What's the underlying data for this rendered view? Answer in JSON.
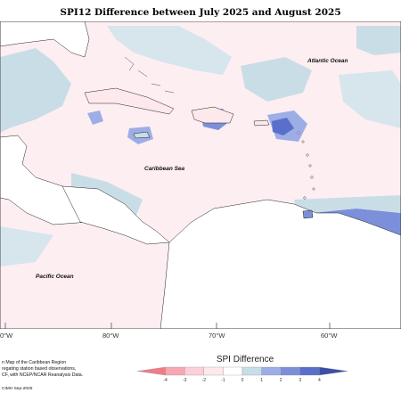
{
  "title": "SPI12 Difference between July 2025 and August 2025",
  "map_labels": {
    "atlantic": "Atlantic Ocean",
    "caribbean": "Caribbean Sea",
    "pacific": "Pacific Ocean"
  },
  "longitude_labels": [
    "80°W",
    "70°W",
    "60°W"
  ],
  "edge_label": "0°W",
  "credit_lines": [
    "n Map of the Caribbean Region",
    "regating station based observations,",
    "CF, with NCEP/NCAR Reanalysis Data."
  ],
  "credit_stamp": "CIMH Sep-2025",
  "legend": {
    "title": "SPI Difference",
    "ticks": [
      "-4",
      "-3",
      "-2",
      "-1",
      "0",
      "1",
      "2",
      "3",
      "4"
    ],
    "colors": [
      "#f07c8a",
      "#f6a7b1",
      "#fbd0d6",
      "#fde8ec",
      "#ffffff",
      "#c9dde6",
      "#9daee6",
      "#7b8fdb",
      "#5a6fc9",
      "#3b4fa6"
    ]
  }
}
